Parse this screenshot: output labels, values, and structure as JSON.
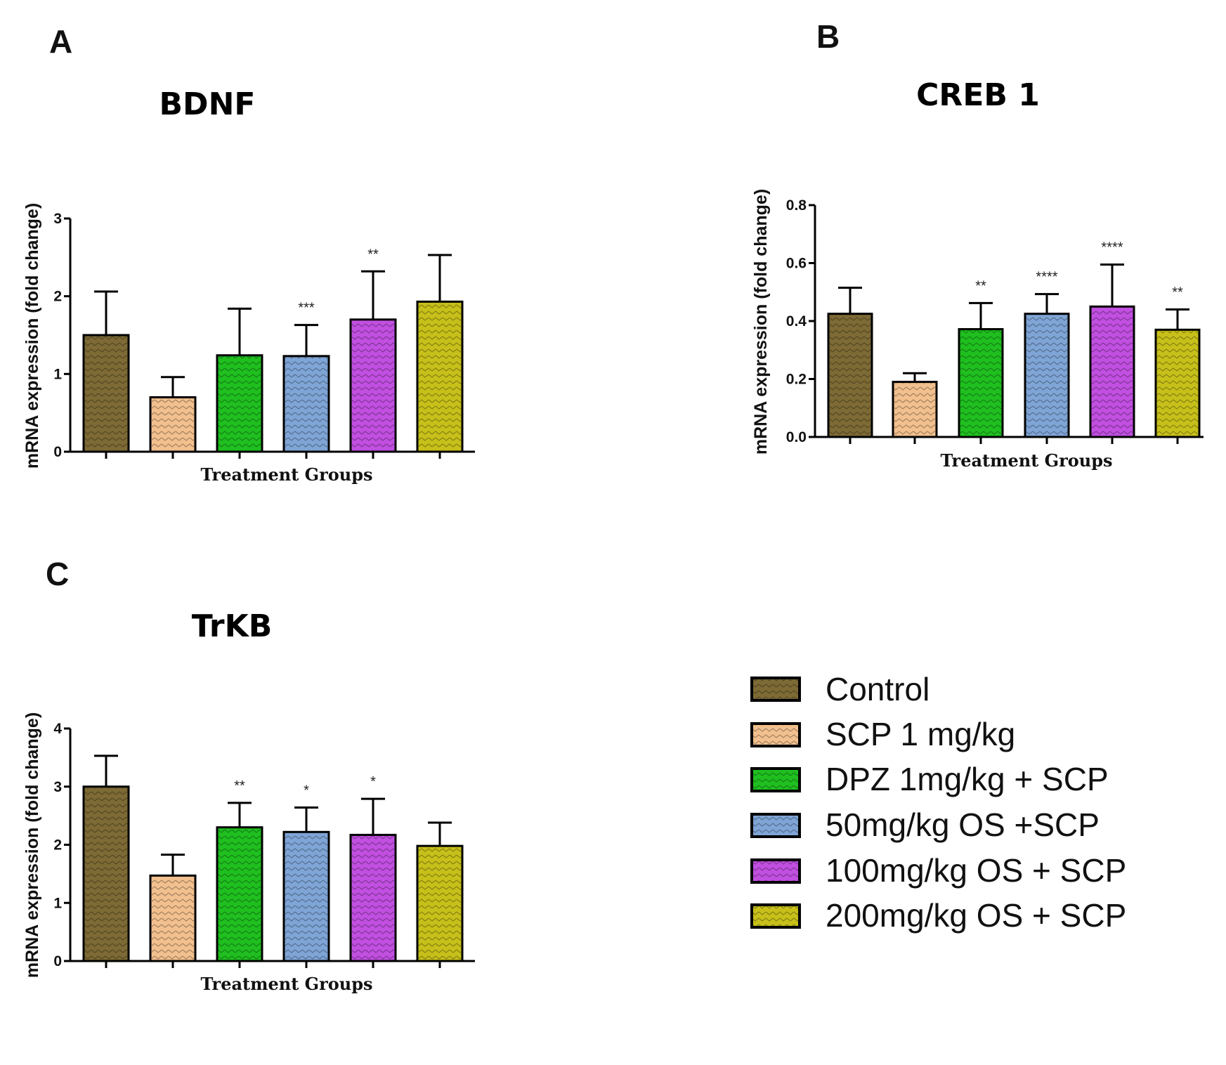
{
  "colors": {
    "title": "#1f3a73",
    "series": [
      "#7d6a35",
      "#f2c08e",
      "#1fbf1f",
      "#7fa5d6",
      "#c14fe0",
      "#c7c01a"
    ]
  },
  "legend": {
    "items": [
      "Control",
      "SCP 1 mg/kg",
      "DPZ 1mg/kg + SCP",
      "50mg/kg OS +SCP",
      "100mg/kg OS + SCP",
      "200mg/kg OS + SCP"
    ]
  },
  "chart_data": [
    {
      "panel": "A",
      "type": "bar",
      "title": "BDNF",
      "xlabel": "Treatment Groups",
      "ylabel": "mRNA expression (fold change)",
      "ylim": [
        0,
        3
      ],
      "yticks": [
        "0",
        "1",
        "2",
        "3"
      ],
      "categories": [
        "Control",
        "SCP 1 mg/kg",
        "DPZ 1mg/kg + SCP",
        "50mg/kg OS +SCP",
        "100mg/kg OS + SCP",
        "200mg/kg OS + SCP"
      ],
      "values": [
        1.5,
        0.7,
        1.24,
        1.23,
        1.7,
        1.93
      ],
      "errors": [
        0.56,
        0.26,
        0.6,
        0.4,
        0.62,
        0.6
      ],
      "significance": [
        "",
        "",
        "",
        "***",
        "**",
        ""
      ]
    },
    {
      "panel": "B",
      "type": "bar",
      "title": "CREB 1",
      "xlabel": "Treatment Groups",
      "ylabel": "mRNA expression (fold change)",
      "ylim": [
        0,
        0.8
      ],
      "yticks": [
        "0.0",
        "0.2",
        "0.4",
        "0.6",
        "0.8"
      ],
      "categories": [
        "Control",
        "SCP 1 mg/kg",
        "DPZ 1mg/kg + SCP",
        "50mg/kg OS +SCP",
        "100mg/kg OS + SCP",
        "200mg/kg OS + SCP"
      ],
      "values": [
        0.425,
        0.19,
        0.372,
        0.425,
        0.45,
        0.37
      ],
      "errors": [
        0.09,
        0.03,
        0.09,
        0.068,
        0.145,
        0.07
      ],
      "significance": [
        "",
        "",
        "**",
        "****",
        "****",
        "**"
      ]
    },
    {
      "panel": "C",
      "type": "bar",
      "title": "TrKB",
      "xlabel": "Treatment Groups",
      "ylabel": "mRNA expression (fold change)",
      "ylim": [
        0,
        4
      ],
      "yticks": [
        "0",
        "1",
        "2",
        "3",
        "4"
      ],
      "categories": [
        "Control",
        "SCP 1 mg/kg",
        "DPZ 1mg/kg + SCP",
        "50mg/kg OS +SCP",
        "100mg/kg OS + SCP",
        "200mg/kg OS + SCP"
      ],
      "values": [
        3.0,
        1.47,
        2.3,
        2.22,
        2.17,
        1.98
      ],
      "errors": [
        0.53,
        0.36,
        0.42,
        0.42,
        0.62,
        0.4
      ],
      "significance": [
        "",
        "",
        "**",
        "*",
        "*",
        ""
      ]
    }
  ]
}
